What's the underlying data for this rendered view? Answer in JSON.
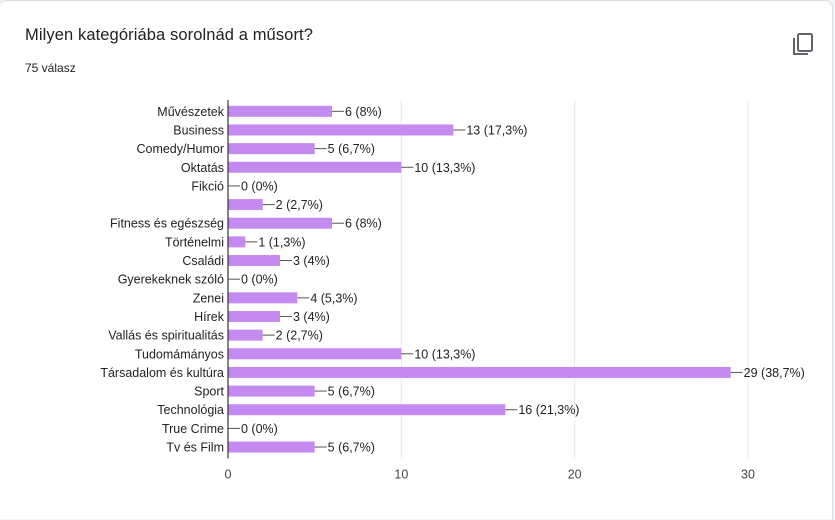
{
  "question": {
    "title": "Milyen kategóriába sorolnád a műsort?",
    "responses": "75 válasz"
  },
  "toolbar": {
    "copy_icon": "copy-icon"
  },
  "colors": {
    "bar": "#c58af0",
    "grid": "#e8e8e8",
    "axis": "#333333"
  },
  "chart_data": {
    "type": "bar",
    "orientation": "horizontal",
    "title": "",
    "xlabel": "",
    "ylabel": "",
    "xlim": [
      0,
      30
    ],
    "xticks": [
      0,
      10,
      20,
      30
    ],
    "grid": true,
    "categories": [
      "Művészetek",
      "Business",
      "Comedy/Humor",
      "Oktatás",
      "Fikció",
      "",
      "Fitness és egészség",
      "Történelmi",
      "Családi",
      "Gyerekeknek szóló",
      "Zenei",
      "Hírek",
      "Vallás és spiritualitás",
      "Tudomámányos",
      "Társadalom és kultúra",
      "Sport",
      "Technológia",
      "True Crime",
      "Tv és Film"
    ],
    "values": [
      6,
      13,
      5,
      10,
      0,
      2,
      6,
      1,
      3,
      0,
      4,
      3,
      2,
      10,
      29,
      5,
      16,
      0,
      5
    ],
    "data_labels": [
      "6 (8%)",
      "13 (17,3%)",
      "5 (6,7%)",
      "10 (13,3%)",
      "0 (0%)",
      "2 (2,7%)",
      "6 (8%)",
      "1 (1,3%)",
      "3 (4%)",
      "0 (0%)",
      "4 (5,3%)",
      "3 (4%)",
      "2 (2,7%)",
      "10 (13,3%)",
      "29 (38,7%)",
      "5 (6,7%)",
      "16 (21,3%)",
      "0 (0%)",
      "5 (6,7%)"
    ]
  }
}
